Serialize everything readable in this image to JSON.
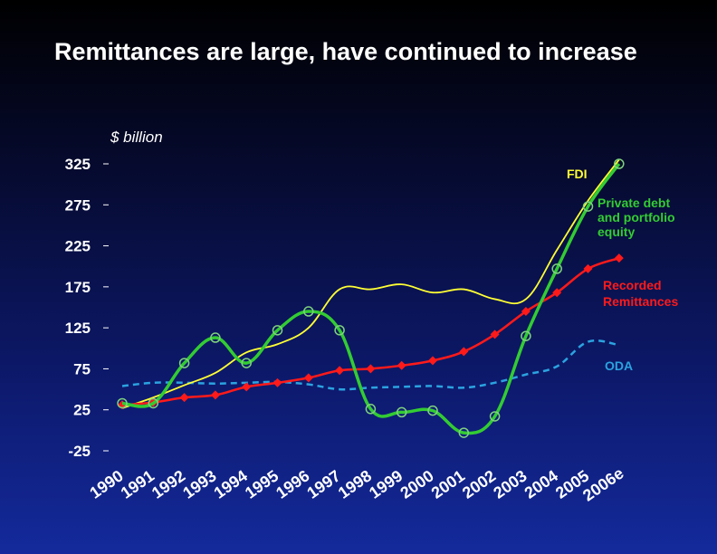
{
  "title": "Remittances are large, have continued to increase",
  "chart_data": {
    "type": "line",
    "title": "Remittances are large, have continued to increase",
    "ylabel": "$ billion",
    "xlabel": "",
    "x": [
      "1990",
      "1991",
      "1992",
      "1993",
      "1994",
      "1995",
      "1996",
      "1997",
      "1998",
      "1999",
      "2000",
      "2001",
      "2002",
      "2003",
      "2004",
      "2005",
      "2006e"
    ],
    "yticks": [
      "325",
      "275",
      "225",
      "175",
      "125",
      "75",
      "25",
      "-25"
    ],
    "ylim": [
      -25,
      325
    ],
    "grid": false,
    "legend": "inline labels at right",
    "series": [
      {
        "name": "FDI",
        "color": "#ffff33",
        "values": [
          27,
          40,
          55,
          70,
          95,
          105,
          125,
          172,
          172,
          178,
          168,
          172,
          160,
          160,
          220,
          280,
          330
        ]
      },
      {
        "name": "Private debt and portfolio equity",
        "color": "#33cc33",
        "values": [
          33,
          33,
          82,
          113,
          82,
          122,
          145,
          122,
          26,
          22,
          24,
          -3,
          17,
          115,
          197,
          273,
          325
        ]
      },
      {
        "name": "Recorded Remittances",
        "color": "#ff1a1a",
        "values": [
          31,
          34,
          40,
          43,
          53,
          58,
          64,
          73,
          75,
          79,
          85,
          96,
          117,
          145,
          168,
          197,
          210
        ]
      },
      {
        "name": "ODA",
        "color": "#2ba3e0",
        "values": [
          54,
          58,
          58,
          57,
          58,
          59,
          56,
          50,
          52,
          53,
          54,
          52,
          58,
          68,
          78,
          108,
          104
        ]
      }
    ]
  }
}
